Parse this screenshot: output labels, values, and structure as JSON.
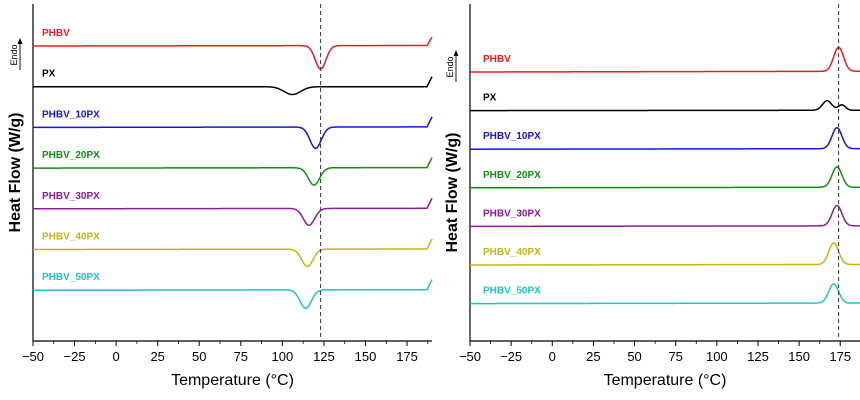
{
  "chart_data": [
    {
      "type": "line",
      "ylabel": "Heat Flow (W/g)",
      "xlabel": "Temperature (°C)",
      "xlim": [
        -50,
        190
      ],
      "xticks": [
        -50,
        -25,
        0,
        25,
        50,
        75,
        100,
        125,
        150,
        175
      ],
      "reference_line_x": 123,
      "endo_label": "Endo",
      "endo_direction": "up",
      "series": [
        {
          "name": "PHBV",
          "color": "#ee1c1c",
          "baseline": [
            -50,
            0.0,
            190,
            0.3
          ],
          "peaks": [
            {
              "x": 123,
              "depth": 4.2,
              "w": 3.2
            }
          ],
          "end_rise": 0.5
        },
        {
          "name": "PX",
          "color": "#000000",
          "baseline": [
            -50,
            4.4,
            190,
            4.4
          ],
          "peaks": [
            {
              "x": 106,
              "depth": 1.4,
              "w": 5.0
            }
          ],
          "end_rise": 0.6
        },
        {
          "name": "PHBV_10PX",
          "color": "#1414e6",
          "baseline": [
            -50,
            7.8,
            190,
            8.1
          ],
          "peaks": [
            {
              "x": 120,
              "depth": 3.8,
              "w": 3.4
            }
          ],
          "end_rise": 0.6
        },
        {
          "name": "PHBV_20PX",
          "color": "#138f13",
          "baseline": [
            -50,
            11.3,
            190,
            11.6
          ],
          "peaks": [
            {
              "x": 119,
              "depth": 3.1,
              "w": 3.4
            }
          ],
          "end_rise": 0.6
        },
        {
          "name": "PHBV_30PX",
          "color": "#8e1a9e",
          "baseline": [
            -50,
            15.0,
            190,
            15.3
          ],
          "peaks": [
            {
              "x": 116,
              "depth": 3.0,
              "w": 3.4
            }
          ],
          "end_rise": 0.6
        },
        {
          "name": "PHBV_40PX",
          "color": "#c8b416",
          "baseline": [
            -50,
            18.5,
            190,
            18.8
          ],
          "peaks": [
            {
              "x": 115,
              "depth": 3.1,
              "w": 3.4
            }
          ],
          "end_rise": 0.6
        },
        {
          "name": "PHBV_50PX",
          "color": "#1ac8c8",
          "baseline": [
            -50,
            22.0,
            190,
            22.3
          ],
          "peaks": [
            {
              "x": 114,
              "depth": 3.3,
              "w": 3.4
            }
          ],
          "end_rise": 0.6
        }
      ]
    },
    {
      "type": "line",
      "ylabel": "Heat Flow (W/g)",
      "xlabel": "Temperature (°C)",
      "xlim": [
        -50,
        187
      ],
      "xticks": [
        -50,
        -25,
        0,
        25,
        50,
        75,
        100,
        125,
        150,
        175
      ],
      "reference_line_x": 174,
      "endo_label": "Endo",
      "endo_direction": "up",
      "series": [
        {
          "name": "PHBV",
          "color": "#ee1c1c",
          "baseline": [
            -50,
            0.0,
            187,
            0.4
          ],
          "peaks": [
            {
              "x": 174,
              "height": 4.0,
              "w": 3.0
            }
          ]
        },
        {
          "name": "PX",
          "color": "#000000",
          "baseline": [
            -50,
            3.5,
            187,
            3.7
          ],
          "peaks": [
            {
              "x": 167,
              "height": 1.6,
              "w": 2.8
            },
            {
              "x": 176,
              "height": 0.9,
              "w": 2.2
            }
          ]
        },
        {
          "name": "PHBV_10PX",
          "color": "#1414e6",
          "baseline": [
            -50,
            7.8,
            187,
            8.1
          ],
          "peaks": [
            {
              "x": 173,
              "height": 3.5,
              "w": 3.0
            }
          ]
        },
        {
          "name": "PHBV_20PX",
          "color": "#138f13",
          "baseline": [
            -50,
            11.6,
            187,
            11.9
          ],
          "peaks": [
            {
              "x": 173,
              "height": 3.4,
              "w": 3.0
            }
          ]
        },
        {
          "name": "PHBV_30PX",
          "color": "#8e1a9e",
          "baseline": [
            -50,
            15.5,
            187,
            15.8
          ],
          "peaks": [
            {
              "x": 173,
              "height": 3.4,
              "w": 3.0
            }
          ]
        },
        {
          "name": "PHBV_40PX",
          "color": "#c8b416",
          "baseline": [
            -50,
            19.4,
            187,
            19.7
          ],
          "peaks": [
            {
              "x": 171,
              "height": 3.6,
              "w": 3.0
            }
          ]
        },
        {
          "name": "PHBV_50PX",
          "color": "#1ac8c8",
          "baseline": [
            -50,
            22.9,
            187,
            23.2
          ],
          "peaks": [
            {
              "x": 171,
              "height": 3.2,
              "w": 3.0
            }
          ]
        }
      ]
    }
  ]
}
